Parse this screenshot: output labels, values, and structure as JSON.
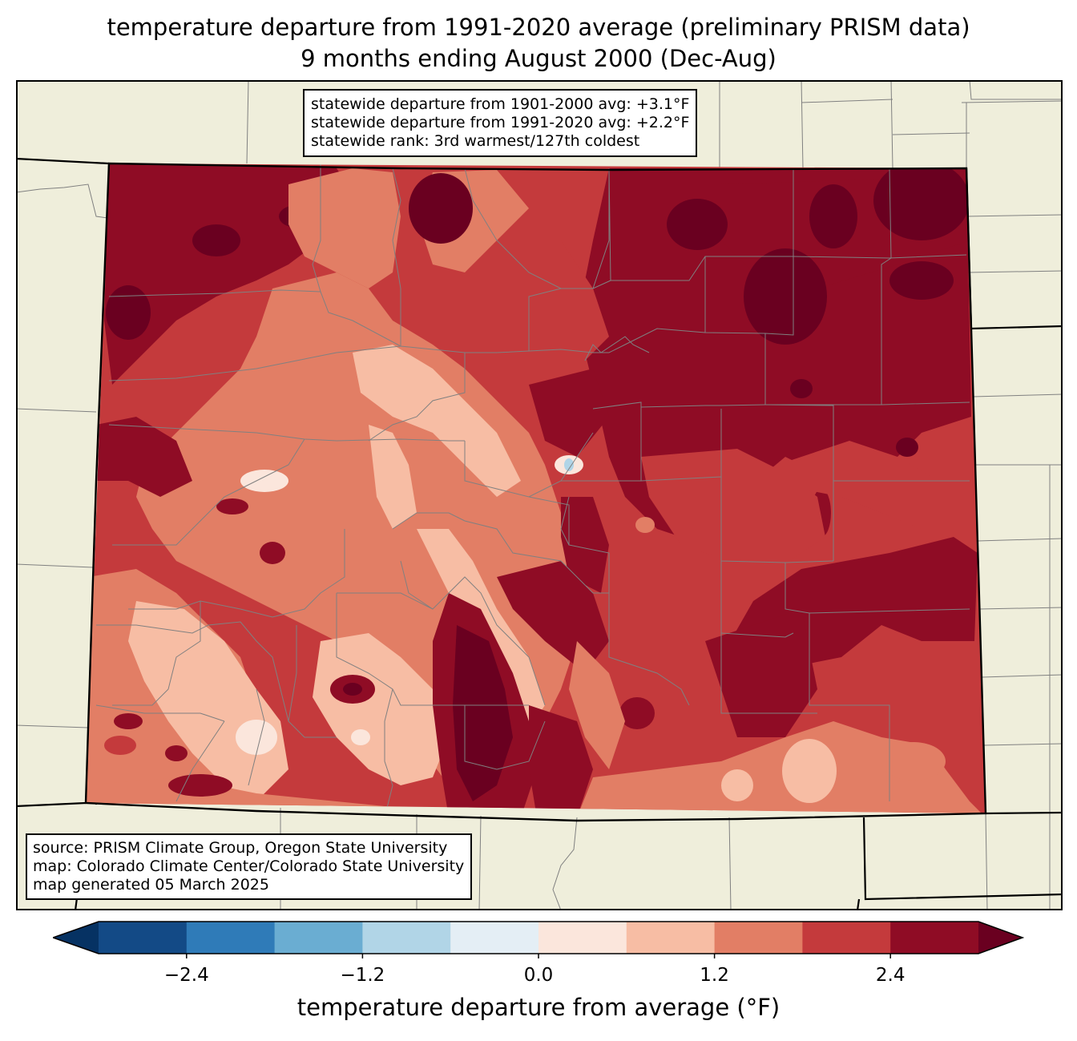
{
  "title": {
    "line1": "temperature departure from 1991-2020 average (preliminary PRISM data)",
    "line2": "9 months ending August 2000 (Dec-Aug)"
  },
  "stats": {
    "line1": "statewide departure from 1901-2000 avg: +3.1°F",
    "line2": "statewide departure from 1991-2020 avg: +2.2°F",
    "line3": "statewide rank: 3rd warmest/127th coldest"
  },
  "source": {
    "line1": "source: PRISM Climate Group, Oregon State University",
    "line2": "map: Colorado Climate Center/Colorado State University",
    "line3": "map generated 05 March 2025"
  },
  "colorbar": {
    "label": "temperature departure from average (°F)",
    "ticks": [
      "−2.4",
      "−1.2",
      "0.0",
      "1.2",
      "2.4"
    ],
    "bins": [
      {
        "lo": -3.0,
        "hi": -2.4,
        "color": "#134a86"
      },
      {
        "lo": -2.4,
        "hi": -1.8,
        "color": "#2f7bb8"
      },
      {
        "lo": -1.8,
        "hi": -1.2,
        "color": "#6aadd2"
      },
      {
        "lo": -1.2,
        "hi": -0.6,
        "color": "#b1d5e7"
      },
      {
        "lo": -0.6,
        "hi": 0.0,
        "color": "#e4eef5"
      },
      {
        "lo": 0.0,
        "hi": 0.6,
        "color": "#fbe6dc"
      },
      {
        "lo": 0.6,
        "hi": 1.2,
        "color": "#f7bda4"
      },
      {
        "lo": 1.2,
        "hi": 1.8,
        "color": "#e27e65"
      },
      {
        "lo": 1.8,
        "hi": 2.4,
        "color": "#c43a3c"
      },
      {
        "lo": 2.4,
        "hi": 3.0,
        "color": "#8f0c25"
      }
    ],
    "under_color": "#063263",
    "over_color": "#6a0020"
  },
  "colors": {
    "land": "#efeedb",
    "boundary": "#000000",
    "county": "#808080"
  }
}
